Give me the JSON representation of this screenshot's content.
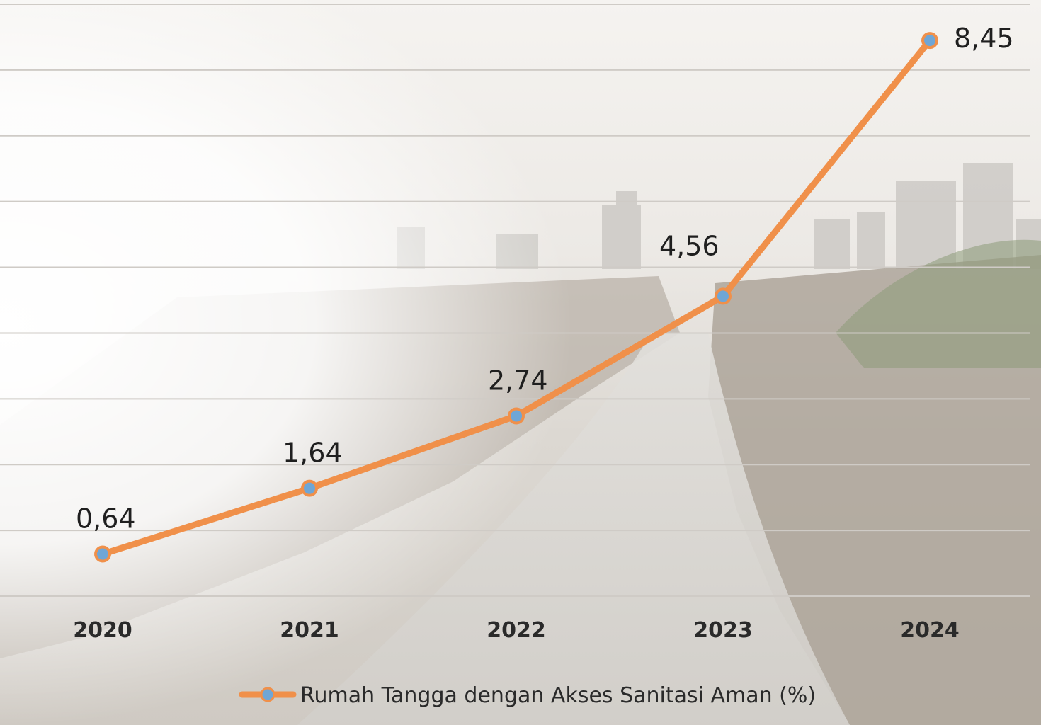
{
  "chart_data": {
    "type": "line",
    "categories": [
      "2020",
      "2021",
      "2022",
      "2023",
      "2024"
    ],
    "series": [
      {
        "name": "Rumah Tangga dengan Akses Sanitasi Aman (%)",
        "values": [
          0.64,
          1.64,
          2.74,
          4.56,
          8.45
        ],
        "labels": [
          "0,64",
          "1,64",
          "2,74",
          "4,56",
          "8,45"
        ]
      }
    ],
    "ylim": [
      0,
      9
    ],
    "grid": true,
    "legend_position": "bottom-center",
    "colors": {
      "line": "#f0904a",
      "marker": "#6fa6d6",
      "grid": "#cfcbc6"
    }
  }
}
